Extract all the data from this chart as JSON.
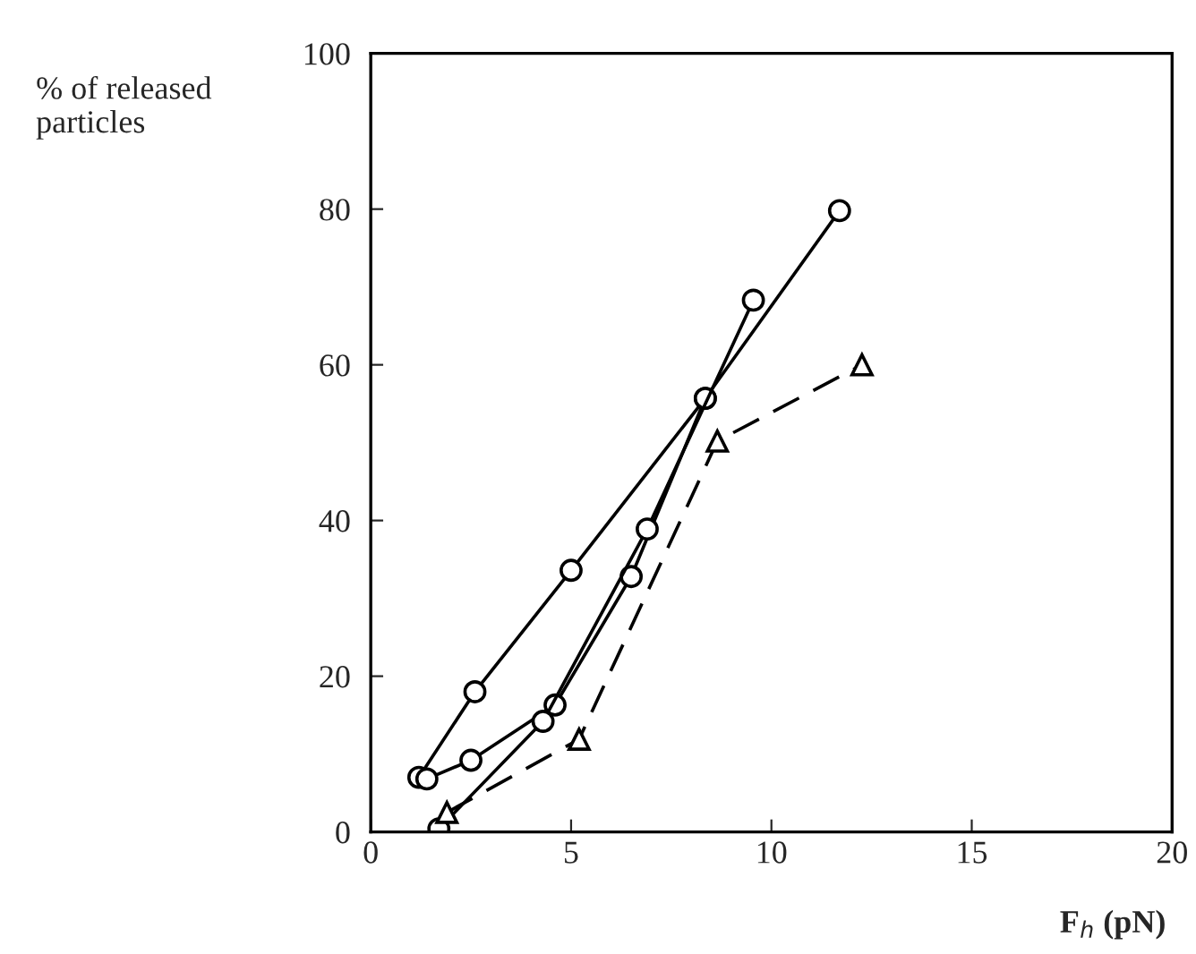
{
  "chart_data": {
    "type": "line",
    "xlabel": "F$_{h}$ (pN)",
    "ylabel": "% of released\nparticles",
    "xlim": [
      0,
      20
    ],
    "ylim": [
      0,
      100
    ],
    "xticks": [
      0,
      5,
      10,
      15,
      20
    ],
    "yticks": [
      0,
      20,
      40,
      60,
      80,
      100
    ],
    "grid": false,
    "legend": false,
    "series": [
      {
        "color": "#000000",
        "marker": "circle",
        "line_style": "solid",
        "x": [
          1.2,
          2.6,
          5.0,
          8.35,
          11.7
        ],
        "values": [
          7,
          18,
          33.6,
          55.7,
          79.8
        ]
      },
      {
        "color": "#000000",
        "marker": "circle",
        "line_style": "solid",
        "x": [
          1.4,
          2.5,
          4.6,
          6.5,
          8.35
        ],
        "values": [
          6.8,
          9.2,
          16.3,
          32.8,
          55.7
        ]
      },
      {
        "color": "#000000",
        "marker": "circle",
        "line_style": "solid",
        "x": [
          1.7,
          4.3,
          6.9,
          9.55
        ],
        "values": [
          0.4,
          14.2,
          38.9,
          68.3
        ]
      },
      {
        "color": "#000000",
        "marker": "triangle",
        "line_style": "dashed",
        "x": [
          1.9,
          5.2,
          8.65,
          12.26
        ],
        "values": [
          2.5,
          11.9,
          50.2,
          60.0
        ]
      }
    ]
  }
}
